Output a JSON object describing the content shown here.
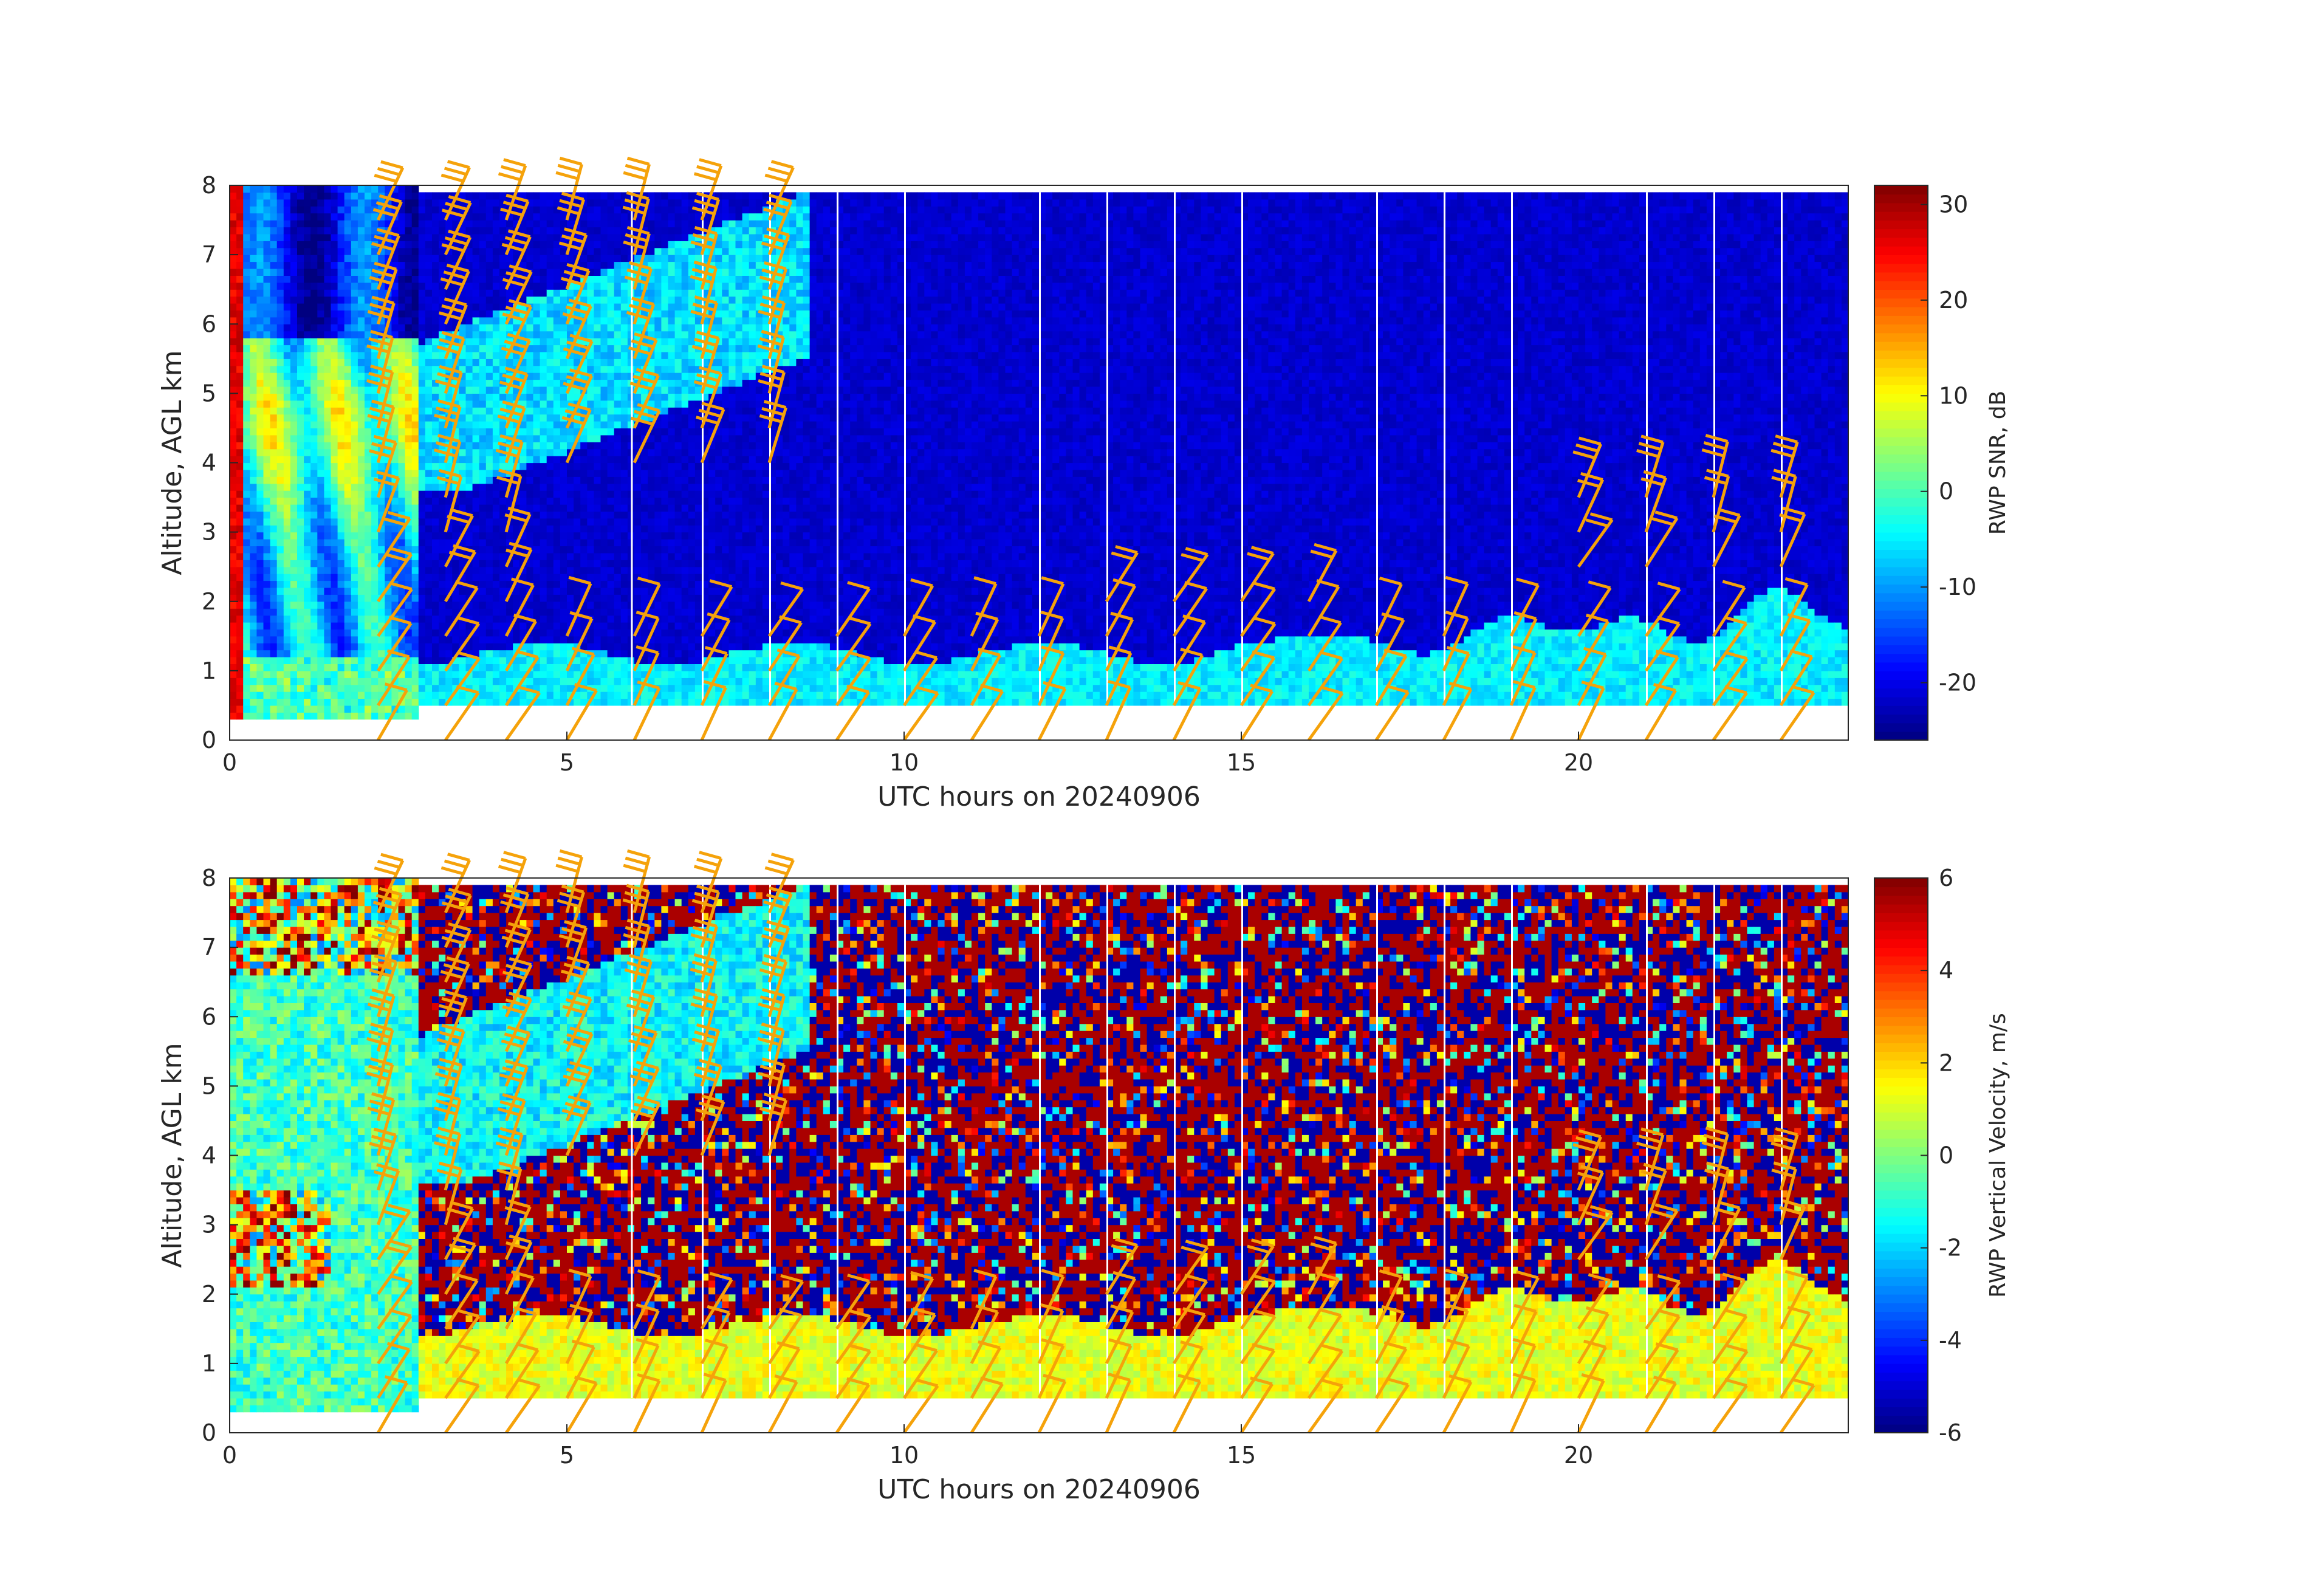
{
  "chart_data": [
    {
      "type": "heatmap",
      "x": {
        "label": "UTC hours on 20240906",
        "range": [
          0,
          24
        ],
        "ticks": [
          0,
          5,
          10,
          15,
          20
        ]
      },
      "y": {
        "label": "Altitude, AGL km",
        "range": [
          0,
          8
        ],
        "ticks": [
          0,
          1,
          2,
          3,
          4,
          5,
          6,
          7,
          8
        ]
      },
      "colorbar": {
        "label": "RWP SNR, dB",
        "range": [
          -26,
          32
        ],
        "ticks": [
          -20,
          -10,
          0,
          10,
          20,
          30
        ],
        "colormap": "jet"
      },
      "overlay": "wind barbs",
      "overlay_color": "#f5a20a"
    },
    {
      "type": "heatmap",
      "x": {
        "label": "UTC hours on 20240906",
        "range": [
          0,
          24
        ],
        "ticks": [
          0,
          5,
          10,
          15,
          20
        ]
      },
      "y": {
        "label": "Altitude, AGL km",
        "range": [
          0,
          8
        ],
        "ticks": [
          0,
          1,
          2,
          3,
          4,
          5,
          6,
          7,
          8
        ]
      },
      "colorbar": {
        "label": "RWP Vertical Velocity, m/s",
        "range": [
          -6,
          6
        ],
        "ticks": [
          -6,
          -4,
          -2,
          0,
          2,
          4,
          6
        ],
        "colormap": "jet"
      },
      "overlay": "wind barbs",
      "overlay_color": "#f5a20a"
    }
  ]
}
